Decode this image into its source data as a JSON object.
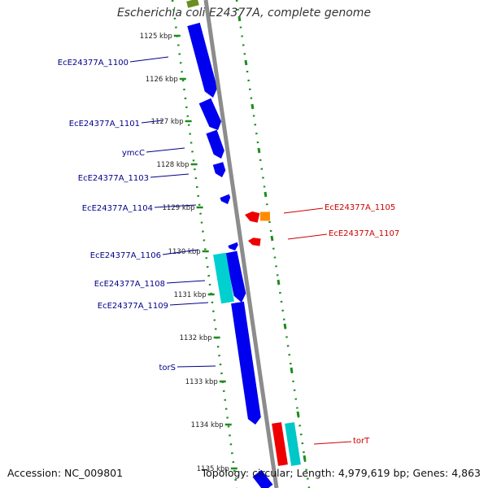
{
  "title": "Escherichia coli E24377A, complete genome",
  "footer": {
    "accession": "Accession: NC_009801",
    "summary": "Topology: circular; Length: 4,979,619 bp; Genes: 4,863"
  },
  "colors": {
    "backbone": "#8c8c8c",
    "ruler_dots": "#1e8c1e",
    "forward_label": "#00008b",
    "reverse_label": "#cc0000",
    "cds_forward": "#0000ee",
    "cds_reverse": "#ee0000",
    "rna_forward": "#00d0d0",
    "rna_reverse": "#00c8c8",
    "misc_reverse": "#ff8c00",
    "green_feature": "#6b8e23"
  },
  "ticks": [
    "1125 kbp",
    "1126 kbp",
    "1127 kbp",
    "1128 kbp",
    "1129 kbp",
    "1130 kbp",
    "1131 kbp",
    "1132 kbp",
    "1133 kbp",
    "1134 kbp",
    "1135 kbp"
  ],
  "labels_left": [
    "EcE24377A_1100",
    "EcE24377A_1101",
    "ymcC",
    "EcE24377A_1103",
    "EcE24377A_1104",
    "EcE24377A_1106",
    "EcE24377A_1108",
    "EcE24377A_1109",
    "torS"
  ],
  "labels_right": [
    "EcE24377A_1105",
    "EcE24377A_1107",
    "torT"
  ]
}
